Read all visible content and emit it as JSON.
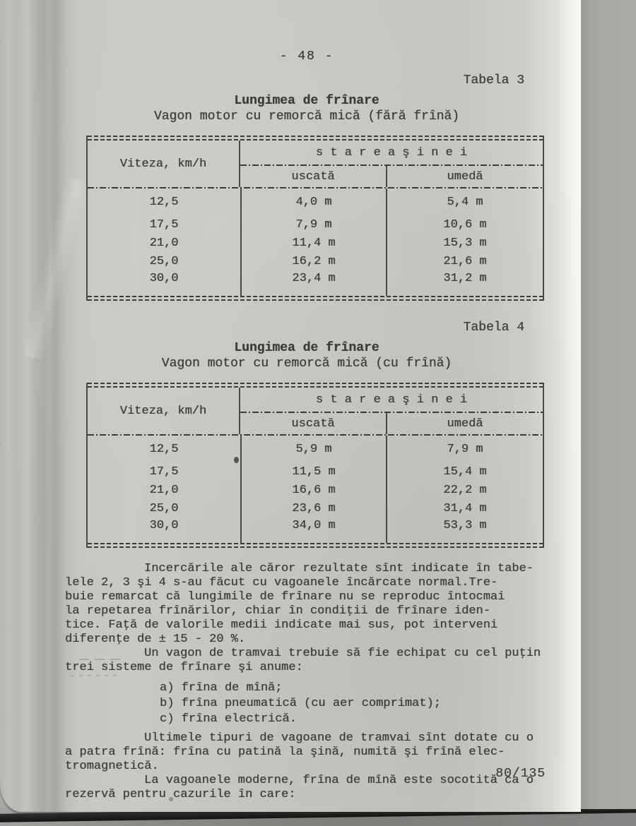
{
  "scan": {
    "page_number": "- 48 -",
    "sheet_number": "80/135"
  },
  "tables": [
    {
      "caption": "Tabela 3",
      "title": "Lungimea de frînare",
      "subtitle": "Vagon motor cu remorcă mică (fără frînă)",
      "columns": {
        "speed": "Viteza, km/h",
        "group": "s t a r e a   ş i n e i",
        "dry": "uscată",
        "wet": "umedă"
      },
      "rows": [
        {
          "speed": "12,5",
          "dry": "4,0 m",
          "wet": "5,4 m"
        },
        {
          "speed": "17,5",
          "dry": "7,9 m",
          "wet": "10,6 m"
        },
        {
          "speed": "21,0",
          "dry": "11,4 m",
          "wet": "15,3 m"
        },
        {
          "speed": "25,0",
          "dry": "16,2 m",
          "wet": "21,6 m"
        },
        {
          "speed": "30,0",
          "dry": "23,4 m",
          "wet": "31,2 m"
        }
      ]
    },
    {
      "caption": "Tabela 4",
      "title": "Lungimea de frînare",
      "subtitle": "Vagon motor cu remorcă mică (cu frînă)",
      "columns": {
        "speed": "Viteza, km/h",
        "group": "s t a r e a   ş i n e i",
        "dry": "uscată",
        "wet": "umedă"
      },
      "rows": [
        {
          "speed": "12,5",
          "dry": "5,9 m",
          "wet": "7,9 m"
        },
        {
          "speed": "17,5",
          "dry": "11,5 m",
          "wet": "15,4 m"
        },
        {
          "speed": "21,0",
          "dry": "16,6 m",
          "wet": "22,2 m"
        },
        {
          "speed": "25,0",
          "dry": "23,6 m",
          "wet": "31,4 m"
        },
        {
          "speed": "30,0",
          "dry": "34,0 m",
          "wet": "53,3 m"
        }
      ]
    }
  ],
  "paragraphs": {
    "p1": "Incercările ale căror rezultate sînt indicate în tabe-\nlele 2, 3 şi 4 s-au făcut cu vagoanele încărcate normal.Tre-\nbuie remarcat că lungimile de frînare nu se reproduc întocmai\nla repetarea frînărilor, chiar în condiţii de frînare iden-\ntice. Faţă de valorile medii indicate mai sus, pot interveni\ndiferenţe de ± 15 - 20 %.",
    "p2": "Un vagon de tramvai trebuie să fie echipat cu cel puţin\ntrei sisteme de frînare şi anume:",
    "list": [
      "a) frîna de mînă;",
      "b) frîna pneumatică (cu aer comprimat);",
      "c) frîna electrică."
    ],
    "p3": "Ultimele tipuri de vagoane de tramvai sînt dotate cu o\na patra frînă: frîna cu patină la şină, numită şi frînă elec-\ntromagnetică.",
    "p4": "La vagoanele moderne, frîna de mînă este socotită ca o\nrezervă pentru cazurile în care:"
  }
}
